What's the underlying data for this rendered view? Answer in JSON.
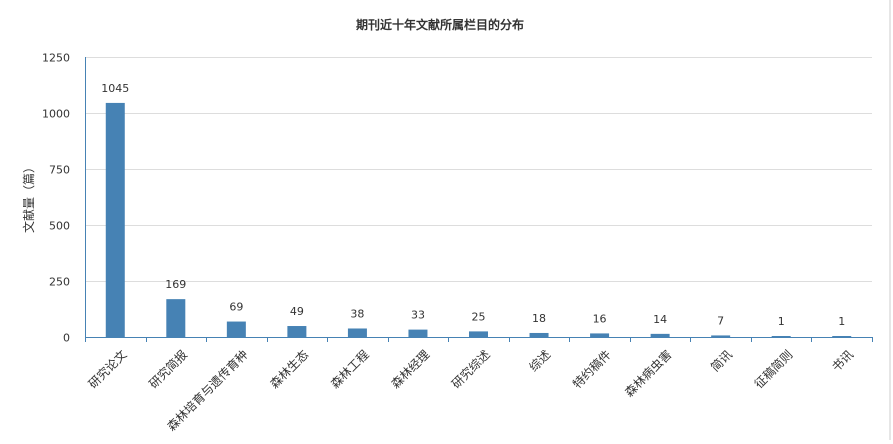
{
  "chart_data": {
    "type": "bar",
    "title": "期刊近十年文献所属栏目的分布",
    "xlabel": "",
    "ylabel": "文献量（篇）",
    "categories": [
      "研究论文",
      "研究简报",
      "森林培育与遗传育种",
      "森林生态",
      "森林工程",
      "森林经理",
      "研究综述",
      "综述",
      "特约稿件",
      "森林病虫害",
      "简讯",
      "征稿简则",
      "书讯"
    ],
    "values": [
      1045,
      169,
      69,
      49,
      38,
      33,
      25,
      18,
      16,
      14,
      7,
      1,
      1
    ],
    "ylim": [
      0,
      1250
    ],
    "yticks": [
      0,
      250,
      500,
      750,
      1000,
      1250
    ],
    "grid": true,
    "legend": "none",
    "colors": {
      "bar": "#4682b4",
      "axis": "#4682b4",
      "grid": "#dddddd",
      "text": "#333333"
    }
  }
}
